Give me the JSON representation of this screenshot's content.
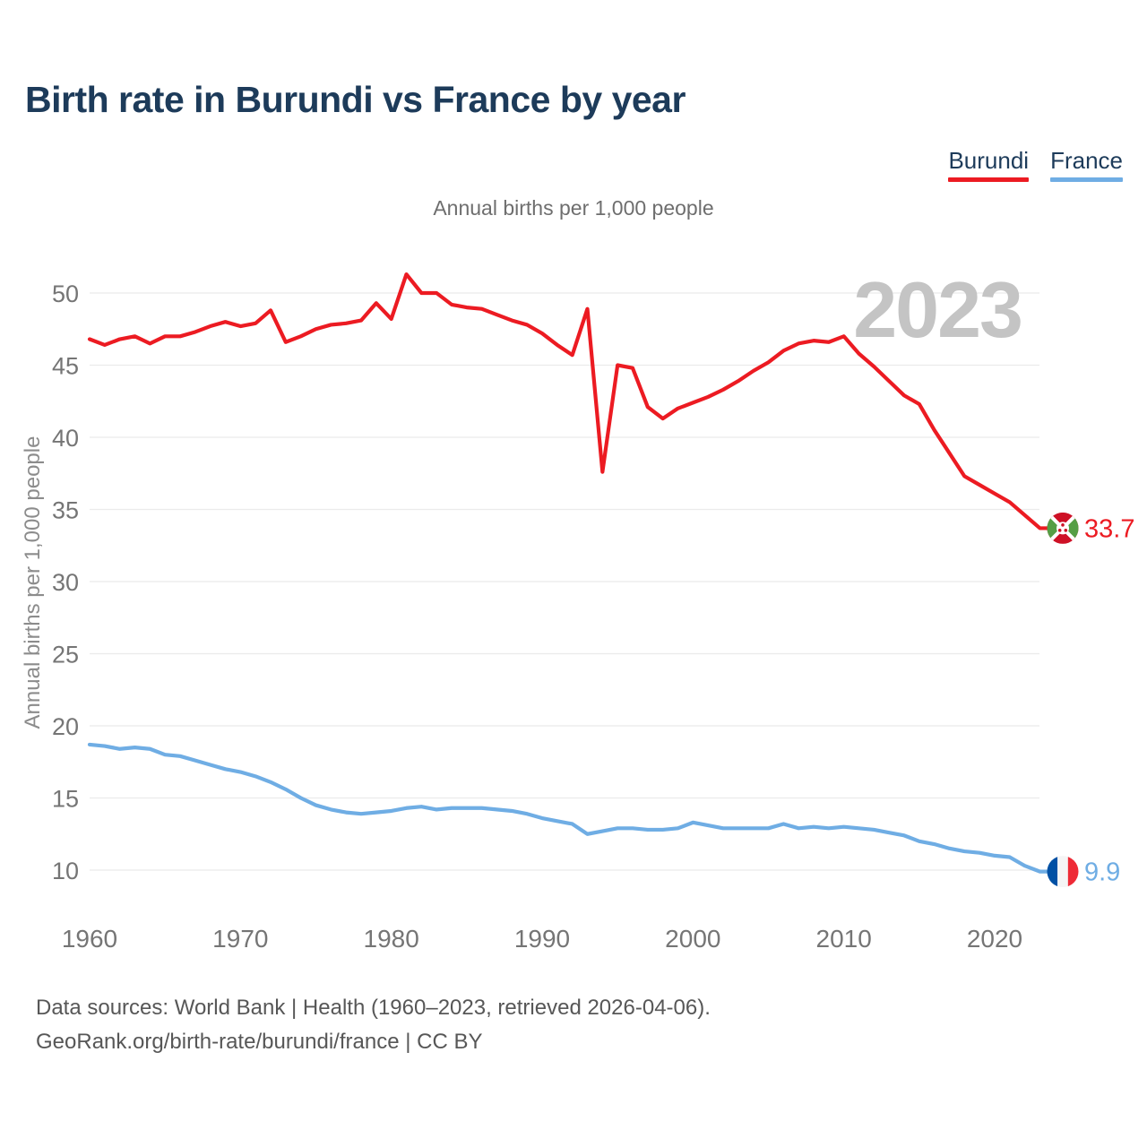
{
  "header": {
    "title": "Birth rate in Burundi vs France by year"
  },
  "legend": [
    {
      "label": "Burundi",
      "color": "#ec1b22"
    },
    {
      "label": "France",
      "color": "#6fade4"
    }
  ],
  "subtitle": "Annual births per 1,000 people",
  "watermark": "2023",
  "chart_data": {
    "type": "line",
    "title": "Annual births per 1,000 people",
    "xlabel": "",
    "ylabel": "Annual births per 1,000 people",
    "x_ticks": [
      1960,
      1970,
      1980,
      1990,
      2000,
      2010,
      2020
    ],
    "y_ticks": [
      10,
      15,
      20,
      25,
      30,
      35,
      40,
      45,
      50
    ],
    "xlim": [
      1960,
      2023
    ],
    "ylim": [
      8.5,
      53
    ],
    "grid": true,
    "legend_position": "top-right",
    "years": [
      1960,
      1961,
      1962,
      1963,
      1964,
      1965,
      1966,
      1967,
      1968,
      1969,
      1970,
      1971,
      1972,
      1973,
      1974,
      1975,
      1976,
      1977,
      1978,
      1979,
      1980,
      1981,
      1982,
      1983,
      1984,
      1985,
      1986,
      1987,
      1988,
      1989,
      1990,
      1991,
      1992,
      1993,
      1994,
      1995,
      1996,
      1997,
      1998,
      1999,
      2000,
      2001,
      2002,
      2003,
      2004,
      2005,
      2006,
      2007,
      2008,
      2009,
      2010,
      2011,
      2012,
      2013,
      2014,
      2015,
      2016,
      2017,
      2018,
      2019,
      2020,
      2021,
      2022,
      2023
    ],
    "series": [
      {
        "name": "Burundi",
        "color": "#ec1b22",
        "end_label": "33.7",
        "flag": "burundi",
        "values": [
          46.8,
          46.4,
          46.8,
          47.0,
          46.5,
          47.0,
          47.0,
          47.3,
          47.7,
          48.0,
          47.7,
          47.9,
          48.8,
          46.6,
          47.0,
          47.5,
          47.8,
          47.9,
          48.1,
          49.3,
          48.2,
          51.3,
          50.0,
          50.0,
          49.2,
          49.0,
          48.9,
          48.5,
          48.1,
          47.8,
          47.2,
          46.4,
          45.7,
          48.9,
          37.6,
          45.0,
          44.8,
          42.1,
          41.3,
          42.0,
          42.4,
          42.8,
          43.3,
          43.9,
          44.6,
          45.2,
          46.0,
          46.5,
          46.7,
          46.6,
          47.0,
          45.8,
          44.9,
          43.9,
          42.9,
          42.3,
          40.5,
          38.9,
          37.3,
          36.7,
          36.1,
          35.5,
          34.6,
          33.7
        ]
      },
      {
        "name": "France",
        "color": "#6fade4",
        "end_label": "9.9",
        "flag": "france",
        "values": [
          18.7,
          18.6,
          18.4,
          18.5,
          18.4,
          18.0,
          17.9,
          17.6,
          17.3,
          17.0,
          16.8,
          16.5,
          16.1,
          15.6,
          15.0,
          14.5,
          14.2,
          14.0,
          13.9,
          14.0,
          14.1,
          14.3,
          14.4,
          14.2,
          14.3,
          14.3,
          14.3,
          14.2,
          14.1,
          13.9,
          13.6,
          13.4,
          13.2,
          12.5,
          12.7,
          12.9,
          12.9,
          12.8,
          12.8,
          12.9,
          13.3,
          13.1,
          12.9,
          12.9,
          12.9,
          12.9,
          13.2,
          12.9,
          13.0,
          12.9,
          13.0,
          12.9,
          12.8,
          12.6,
          12.4,
          12.0,
          11.8,
          11.5,
          11.3,
          11.2,
          11.0,
          10.9,
          10.3,
          9.9
        ]
      }
    ]
  },
  "footer": {
    "line1": "Data sources: World Bank | Health (1960–2023, retrieved 2026-04-06).",
    "line2": "GeoRank.org/birth-rate/burundi/france | CC BY"
  },
  "colors": {
    "grid": "#ebebeb",
    "tick_text": "#757575",
    "axis_title": "#8c8c8c",
    "watermark": "#c4c4c4"
  }
}
